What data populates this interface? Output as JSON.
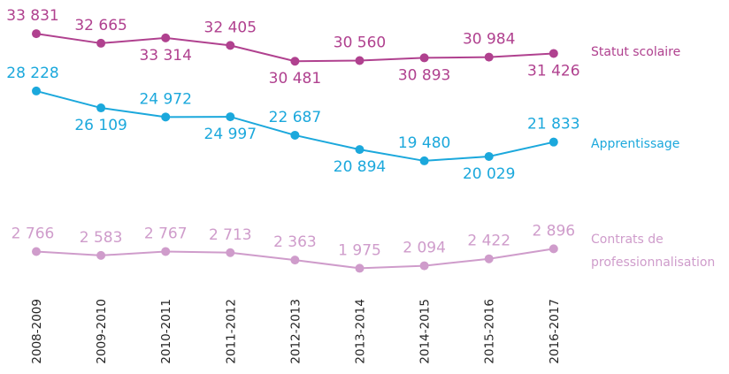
{
  "chart_data": {
    "type": "line",
    "categories": [
      "2008-2009",
      "2009-2010",
      "2010-2011",
      "2011-2012",
      "2012-2013",
      "2013-2014",
      "2014-2015",
      "2015-2016",
      "2016-2017"
    ],
    "series": [
      {
        "name": "Statut scolaire",
        "color": "#b0418f",
        "ylim": [
          4600,
          34700
        ],
        "values": [
          33831,
          32665,
          33314,
          32405,
          30481,
          30560,
          30893,
          30984,
          31426
        ],
        "value_labels": [
          "33 831",
          "32 665",
          "33 314",
          "32 405",
          "30 481",
          "30 560",
          "30 893",
          "30 984",
          "31 426"
        ]
      },
      {
        "name": "Apprentissage",
        "color": "#1ba8dc",
        "ylim": [
          5300,
          36300
        ],
        "values": [
          28228,
          26109,
          24972,
          24997,
          22687,
          20894,
          19480,
          20029,
          21833
        ],
        "value_labels": [
          "28 228",
          "26 109",
          "24 972",
          "24 997",
          "22 687",
          "20 894",
          "19 480",
          "20 029",
          "21 833"
        ]
      },
      {
        "name": "Contrats de professionnalisation",
        "color": "#cf9ccb",
        "ylim": [
          1700,
          13400
        ],
        "values": [
          2766,
          2583,
          2767,
          2713,
          2363,
          1975,
          2094,
          2422,
          2896
        ],
        "value_labels": [
          "2 766",
          "2 583",
          "2 767",
          "2 713",
          "2 363",
          "1 975",
          "2 094",
          "2 422",
          "2 896"
        ]
      }
    ]
  }
}
